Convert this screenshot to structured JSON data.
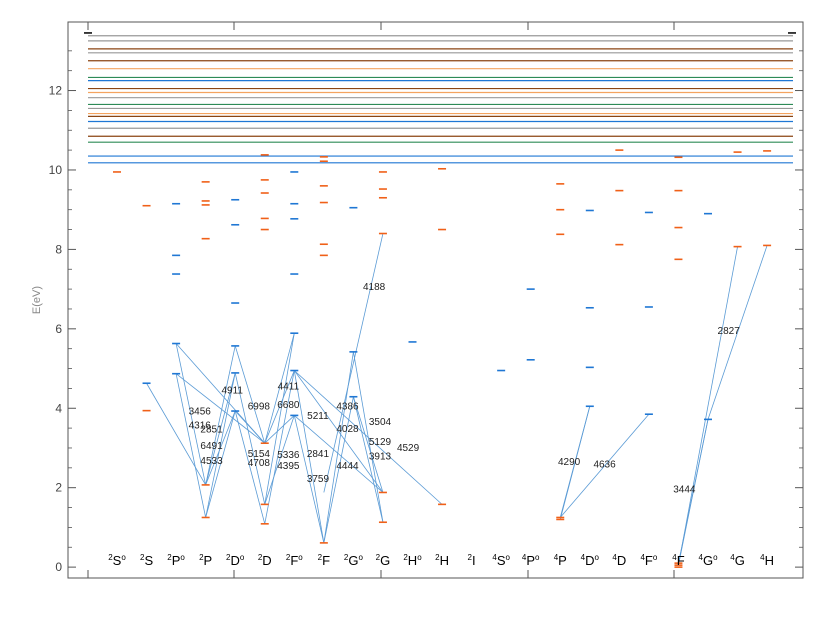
{
  "chart_data": {
    "type": "scatter",
    "title": "",
    "ylabel": "E(eV)",
    "ylim": [
      -0.4,
      13.6
    ],
    "yticks": [
      0,
      2,
      4,
      6,
      8,
      10,
      12
    ],
    "grid": false,
    "colors": {
      "odd": "#1f77d4",
      "even": "#f06018",
      "transition": "#5b9bd5",
      "axis": "#555555"
    },
    "columns": [
      {
        "mult": "2",
        "L": "S",
        "parity": "o"
      },
      {
        "mult": "2",
        "L": "S",
        "parity": ""
      },
      {
        "mult": "2",
        "L": "P",
        "parity": "o"
      },
      {
        "mult": "2",
        "L": "P",
        "parity": ""
      },
      {
        "mult": "2",
        "L": "D",
        "parity": "o"
      },
      {
        "mult": "2",
        "L": "D",
        "parity": ""
      },
      {
        "mult": "2",
        "L": "F",
        "parity": "o"
      },
      {
        "mult": "2",
        "L": "F",
        "parity": ""
      },
      {
        "mult": "2",
        "L": "G",
        "parity": "o"
      },
      {
        "mult": "2",
        "L": "G",
        "parity": ""
      },
      {
        "mult": "2",
        "L": "H",
        "parity": "o"
      },
      {
        "mult": "2",
        "L": "H",
        "parity": ""
      },
      {
        "mult": "2",
        "L": "I",
        "parity": ""
      },
      {
        "mult": "4",
        "L": "S",
        "parity": "o"
      },
      {
        "mult": "4",
        "L": "P",
        "parity": "o"
      },
      {
        "mult": "4",
        "L": "P",
        "parity": ""
      },
      {
        "mult": "4",
        "L": "D",
        "parity": "o"
      },
      {
        "mult": "4",
        "L": "D",
        "parity": ""
      },
      {
        "mult": "4",
        "L": "F",
        "parity": "o"
      },
      {
        "mult": "4",
        "L": "F",
        "parity": ""
      },
      {
        "mult": "4",
        "L": "G",
        "parity": "o"
      },
      {
        "mult": "4",
        "L": "G",
        "parity": ""
      },
      {
        "mult": "4",
        "L": "H",
        "parity": ""
      }
    ],
    "levels": [
      {
        "col": 0,
        "E": 9.95,
        "parity": "even"
      },
      {
        "col": 1,
        "E": 4.63,
        "parity": "odd"
      },
      {
        "col": 1,
        "E": 3.94,
        "parity": "even"
      },
      {
        "col": 1,
        "E": 9.1,
        "parity": "even"
      },
      {
        "col": 2,
        "E": 5.63,
        "parity": "odd"
      },
      {
        "col": 2,
        "E": 4.87,
        "parity": "odd"
      },
      {
        "col": 2,
        "E": 7.38,
        "parity": "odd"
      },
      {
        "col": 2,
        "E": 7.85,
        "parity": "odd"
      },
      {
        "col": 2,
        "E": 9.15,
        "parity": "odd"
      },
      {
        "col": 3,
        "E": 2.07,
        "parity": "even"
      },
      {
        "col": 3,
        "E": 1.25,
        "parity": "even"
      },
      {
        "col": 3,
        "E": 8.27,
        "parity": "even"
      },
      {
        "col": 3,
        "E": 9.12,
        "parity": "even"
      },
      {
        "col": 3,
        "E": 9.22,
        "parity": "even"
      },
      {
        "col": 3,
        "E": 9.7,
        "parity": "even"
      },
      {
        "col": 4,
        "E": 5.57,
        "parity": "odd"
      },
      {
        "col": 4,
        "E": 4.89,
        "parity": "odd"
      },
      {
        "col": 4,
        "E": 3.93,
        "parity": "odd"
      },
      {
        "col": 4,
        "E": 6.65,
        "parity": "odd"
      },
      {
        "col": 4,
        "E": 8.62,
        "parity": "odd"
      },
      {
        "col": 4,
        "E": 9.25,
        "parity": "odd"
      },
      {
        "col": 5,
        "E": 3.12,
        "parity": "even"
      },
      {
        "col": 5,
        "E": 1.58,
        "parity": "even"
      },
      {
        "col": 5,
        "E": 1.09,
        "parity": "even"
      },
      {
        "col": 5,
        "E": 8.5,
        "parity": "even"
      },
      {
        "col": 5,
        "E": 8.78,
        "parity": "even"
      },
      {
        "col": 5,
        "E": 9.42,
        "parity": "even"
      },
      {
        "col": 5,
        "E": 9.75,
        "parity": "even"
      },
      {
        "col": 5,
        "E": 10.38,
        "parity": "even"
      },
      {
        "col": 6,
        "E": 5.89,
        "parity": "odd"
      },
      {
        "col": 6,
        "E": 4.95,
        "parity": "odd"
      },
      {
        "col": 6,
        "E": 3.82,
        "parity": "odd"
      },
      {
        "col": 6,
        "E": 7.38,
        "parity": "odd"
      },
      {
        "col": 6,
        "E": 8.77,
        "parity": "odd"
      },
      {
        "col": 6,
        "E": 9.15,
        "parity": "odd"
      },
      {
        "col": 6,
        "E": 9.95,
        "parity": "odd"
      },
      {
        "col": 7,
        "E": 0.61,
        "parity": "even"
      },
      {
        "col": 7,
        "E": 7.85,
        "parity": "even"
      },
      {
        "col": 7,
        "E": 8.13,
        "parity": "even"
      },
      {
        "col": 7,
        "E": 9.18,
        "parity": "even"
      },
      {
        "col": 7,
        "E": 9.6,
        "parity": "even"
      },
      {
        "col": 7,
        "E": 10.22,
        "parity": "even"
      },
      {
        "col": 7,
        "E": 10.33,
        "parity": "even"
      },
      {
        "col": 8,
        "E": 5.42,
        "parity": "odd"
      },
      {
        "col": 8,
        "E": 4.29,
        "parity": "odd"
      },
      {
        "col": 8,
        "E": 9.05,
        "parity": "odd"
      },
      {
        "col": 9,
        "E": 1.88,
        "parity": "even"
      },
      {
        "col": 9,
        "E": 1.13,
        "parity": "even"
      },
      {
        "col": 9,
        "E": 8.4,
        "parity": "even"
      },
      {
        "col": 9,
        "E": 9.3,
        "parity": "even"
      },
      {
        "col": 9,
        "E": 9.52,
        "parity": "even"
      },
      {
        "col": 9,
        "E": 9.95,
        "parity": "even"
      },
      {
        "col": 10,
        "E": 5.67,
        "parity": "odd"
      },
      {
        "col": 11,
        "E": 1.58,
        "parity": "even"
      },
      {
        "col": 11,
        "E": 8.5,
        "parity": "even"
      },
      {
        "col": 11,
        "E": 10.03,
        "parity": "even"
      },
      {
        "col": 13,
        "E": 4.95,
        "parity": "odd"
      },
      {
        "col": 14,
        "E": 5.22,
        "parity": "odd"
      },
      {
        "col": 14,
        "E": 7.0,
        "parity": "odd"
      },
      {
        "col": 15,
        "E": 1.2,
        "parity": "even"
      },
      {
        "col": 15,
        "E": 1.25,
        "parity": "even"
      },
      {
        "col": 15,
        "E": 8.38,
        "parity": "even"
      },
      {
        "col": 15,
        "E": 9.0,
        "parity": "even"
      },
      {
        "col": 15,
        "E": 9.65,
        "parity": "even"
      },
      {
        "col": 16,
        "E": 4.05,
        "parity": "odd"
      },
      {
        "col": 16,
        "E": 5.03,
        "parity": "odd"
      },
      {
        "col": 16,
        "E": 6.53,
        "parity": "odd"
      },
      {
        "col": 16,
        "E": 8.98,
        "parity": "odd"
      },
      {
        "col": 17,
        "E": 8.12,
        "parity": "even"
      },
      {
        "col": 17,
        "E": 9.48,
        "parity": "even"
      },
      {
        "col": 17,
        "E": 10.5,
        "parity": "even"
      },
      {
        "col": 18,
        "E": 3.85,
        "parity": "odd"
      },
      {
        "col": 18,
        "E": 6.55,
        "parity": "odd"
      },
      {
        "col": 18,
        "E": 8.93,
        "parity": "odd"
      },
      {
        "col": 19,
        "E": 0.0,
        "parity": "even"
      },
      {
        "col": 19,
        "E": 0.05,
        "parity": "even"
      },
      {
        "col": 19,
        "E": 0.1,
        "parity": "even"
      },
      {
        "col": 19,
        "E": 7.75,
        "parity": "even"
      },
      {
        "col": 19,
        "E": 8.55,
        "parity": "even"
      },
      {
        "col": 19,
        "E": 9.48,
        "parity": "even"
      },
      {
        "col": 19,
        "E": 10.32,
        "parity": "even"
      },
      {
        "col": 20,
        "E": 3.72,
        "parity": "odd"
      },
      {
        "col": 20,
        "E": 8.9,
        "parity": "odd"
      },
      {
        "col": 21,
        "E": 8.07,
        "parity": "even"
      },
      {
        "col": 21,
        "E": 10.45,
        "parity": "even"
      },
      {
        "col": 22,
        "E": 8.1,
        "parity": "even"
      },
      {
        "col": 22,
        "E": 10.48,
        "parity": "even"
      }
    ],
    "continuum": [
      {
        "E": 13.38,
        "color": "#999999"
      },
      {
        "E": 13.25,
        "color": "#999999"
      },
      {
        "E": 13.05,
        "color": "#8b4513"
      },
      {
        "E": 12.95,
        "color": "#999999"
      },
      {
        "E": 12.75,
        "color": "#8b4513"
      },
      {
        "E": 12.55,
        "color": "#f4a460"
      },
      {
        "E": 12.33,
        "color": "#2e8b57"
      },
      {
        "E": 12.25,
        "color": "#1f77d4"
      },
      {
        "E": 12.05,
        "color": "#8b4513"
      },
      {
        "E": 11.95,
        "color": "#f4a460"
      },
      {
        "E": 11.82,
        "color": "#999999"
      },
      {
        "E": 11.65,
        "color": "#2e8b57"
      },
      {
        "E": 11.55,
        "color": "#999999"
      },
      {
        "E": 11.42,
        "color": "#f4a460"
      },
      {
        "E": 11.35,
        "color": "#8b4513"
      },
      {
        "E": 11.22,
        "color": "#1f77d4"
      },
      {
        "E": 11.05,
        "color": "#999999"
      },
      {
        "E": 10.85,
        "color": "#8b4513"
      },
      {
        "E": 10.7,
        "color": "#2e8b57"
      },
      {
        "E": 10.35,
        "color": "#1f77d4"
      },
      {
        "E": 10.18,
        "color": "#1f77d4"
      }
    ],
    "transitions": [
      {
        "x1": 1,
        "y1": 4.63,
        "x2": 3,
        "y2": 2.07
      },
      {
        "x1": 2,
        "y1": 5.63,
        "x2": 3,
        "y2": 2.07
      },
      {
        "x1": 2,
        "y1": 5.63,
        "x2": 5,
        "y2": 3.12
      },
      {
        "x1": 2,
        "y1": 4.87,
        "x2": 3,
        "y2": 1.25
      },
      {
        "x1": 2,
        "y1": 4.87,
        "x2": 5,
        "y2": 3.12
      },
      {
        "x1": 4,
        "y1": 5.57,
        "x2": 3,
        "y2": 2.07
      },
      {
        "x1": 4,
        "y1": 5.57,
        "x2": 5,
        "y2": 3.12
      },
      {
        "x1": 4,
        "y1": 4.89,
        "x2": 3,
        "y2": 1.25
      },
      {
        "x1": 4,
        "y1": 4.89,
        "x2": 5,
        "y2": 1.58
      },
      {
        "x1": 4,
        "y1": 4.89,
        "x2": 3,
        "y2": 2.07
      },
      {
        "x1": 4,
        "y1": 3.93,
        "x2": 3,
        "y2": 1.25
      },
      {
        "x1": 4,
        "y1": 3.93,
        "x2": 5,
        "y2": 1.09
      },
      {
        "x1": 4,
        "y1": 3.93,
        "x2": 3,
        "y2": 2.07
      },
      {
        "x1": 4,
        "y1": 3.93,
        "x2": 5,
        "y2": 3.12
      },
      {
        "x1": 6,
        "y1": 5.89,
        "x2": 5,
        "y2": 3.12
      },
      {
        "x1": 6,
        "y1": 5.89,
        "x2": 5,
        "y2": 1.58
      },
      {
        "x1": 6,
        "y1": 4.95,
        "x2": 5,
        "y2": 3.12
      },
      {
        "x1": 6,
        "y1": 4.95,
        "x2": 7,
        "y2": 0.61
      },
      {
        "x1": 6,
        "y1": 4.95,
        "x2": 5,
        "y2": 1.09
      },
      {
        "x1": 6,
        "y1": 4.95,
        "x2": 9,
        "y2": 1.88
      },
      {
        "x1": 6,
        "y1": 4.95,
        "x2": 11,
        "y2": 1.58
      },
      {
        "x1": 6,
        "y1": 3.82,
        "x2": 5,
        "y2": 3.12
      },
      {
        "x1": 6,
        "y1": 3.82,
        "x2": 7,
        "y2": 0.61
      },
      {
        "x1": 6,
        "y1": 3.82,
        "x2": 5,
        "y2": 1.58
      },
      {
        "x1": 6,
        "y1": 3.82,
        "x2": 9,
        "y2": 1.88
      },
      {
        "x1": 8,
        "y1": 5.42,
        "x2": 7,
        "y2": 0.61
      },
      {
        "x1": 8,
        "y1": 5.42,
        "x2": 9,
        "y2": 1.13
      },
      {
        "x1": 8,
        "y1": 4.29,
        "x2": 9,
        "y2": 1.88
      },
      {
        "x1": 8,
        "y1": 4.29,
        "x2": 9,
        "y2": 1.13
      },
      {
        "x1": 8,
        "y1": 4.29,
        "x2": 7,
        "y2": 0.61
      },
      {
        "x1": 9,
        "y1": 8.4,
        "x2": 7,
        "y2": 1.88
      },
      {
        "x1": 16,
        "y1": 4.05,
        "x2": 15,
        "y2": 1.25
      },
      {
        "x1": 16,
        "y1": 4.05,
        "x2": 15,
        "y2": 1.2
      },
      {
        "x1": 18,
        "y1": 3.85,
        "x2": 15,
        "y2": 1.25
      },
      {
        "x1": 20,
        "y1": 3.72,
        "x2": 19,
        "y2": 0.1
      },
      {
        "x1": 20,
        "y1": 3.72,
        "x2": 19,
        "y2": 0.05
      },
      {
        "x1": 21,
        "y1": 8.07,
        "x2": 19,
        "y2": 0.05
      },
      {
        "x1": 22,
        "y1": 8.1,
        "x2": 20,
        "y2": 3.72
      }
    ],
    "wavelength_labels": [
      {
        "text": "4911",
        "col": 3.9,
        "E": 4.45
      },
      {
        "text": "3456",
        "col": 2.8,
        "E": 3.92
      },
      {
        "text": "4316",
        "col": 2.8,
        "E": 3.57
      },
      {
        "text": "2851",
        "col": 3.2,
        "E": 3.47
      },
      {
        "text": "6491",
        "col": 3.2,
        "E": 3.05
      },
      {
        "text": "4533",
        "col": 3.2,
        "E": 2.67
      },
      {
        "text": "6998",
        "col": 4.8,
        "E": 4.05
      },
      {
        "text": "5154",
        "col": 4.8,
        "E": 2.85
      },
      {
        "text": "4708",
        "col": 4.8,
        "E": 2.62
      },
      {
        "text": "4411",
        "col": 5.8,
        "E": 4.55
      },
      {
        "text": "6680",
        "col": 5.8,
        "E": 4.08
      },
      {
        "text": "5336",
        "col": 5.8,
        "E": 2.82
      },
      {
        "text": "4395",
        "col": 5.8,
        "E": 2.55
      },
      {
        "text": "5211",
        "col": 6.8,
        "E": 3.8
      },
      {
        "text": "2841",
        "col": 6.8,
        "E": 2.85
      },
      {
        "text": "3759",
        "col": 6.8,
        "E": 2.22
      },
      {
        "text": "4386",
        "col": 7.8,
        "E": 4.05
      },
      {
        "text": "4028",
        "col": 7.8,
        "E": 3.48
      },
      {
        "text": "4444",
        "col": 7.8,
        "E": 2.55
      },
      {
        "text": "4188",
        "col": 8.7,
        "E": 7.05
      },
      {
        "text": "3504",
        "col": 8.9,
        "E": 3.65
      },
      {
        "text": "5129",
        "col": 8.9,
        "E": 3.15
      },
      {
        "text": "3913",
        "col": 8.9,
        "E": 2.78
      },
      {
        "text": "4529",
        "col": 9.85,
        "E": 3.0
      },
      {
        "text": "4290",
        "col": 15.3,
        "E": 2.65
      },
      {
        "text": "4636",
        "col": 16.5,
        "E": 2.58
      },
      {
        "text": "2827",
        "col": 20.7,
        "E": 5.95
      },
      {
        "text": "3444",
        "col": 19.2,
        "E": 1.95
      }
    ]
  }
}
